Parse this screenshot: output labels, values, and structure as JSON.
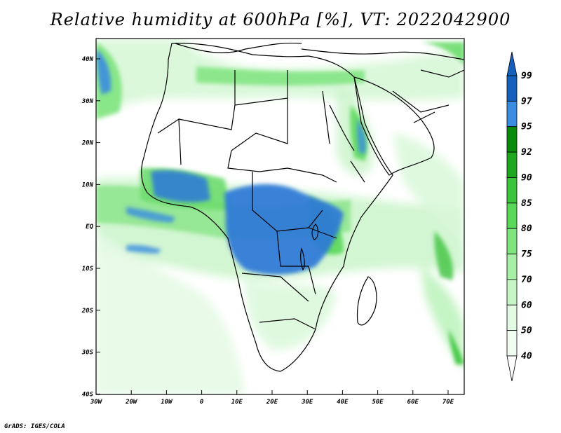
{
  "title": "Relative humidity at 600hPa [%], VT: 2022042900",
  "credit": "GrADS: IGES/COLA",
  "lat_labels": [
    "40N",
    "30N",
    "20N",
    "10N",
    "EQ",
    "10S",
    "20S",
    "30S",
    "40S"
  ],
  "lon_labels": [
    "30W",
    "20W",
    "10W",
    "0",
    "10E",
    "20E",
    "30E",
    "40E",
    "50E",
    "60E",
    "70E"
  ],
  "colorbar": {
    "levels": [
      "99",
      "97",
      "95",
      "92",
      "90",
      "85",
      "80",
      "75",
      "70",
      "60",
      "50",
      "40"
    ],
    "colors": [
      "#1560bd",
      "#3a8ce0",
      "#0a8c0a",
      "#1fa81f",
      "#3cc43c",
      "#5ad85a",
      "#7ee47e",
      "#a6efa6",
      "#c6f6c6",
      "#e2fbe2",
      "#f2fdf2"
    ]
  },
  "colors": {
    "land_line": "#000000",
    "very_humid": "#2a78d8",
    "humid_green": "#4fc94f",
    "mid_green": "#8fe68f",
    "light_green": "#cdf5cd"
  }
}
